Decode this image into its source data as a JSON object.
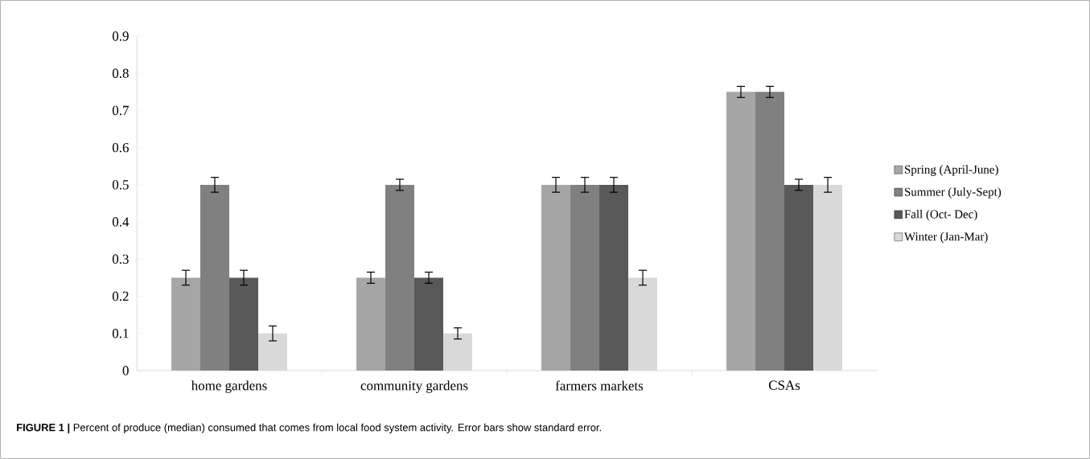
{
  "chart_data": {
    "type": "bar",
    "categories": [
      "home gardens",
      "community gardens",
      "farmers markets",
      "CSAs"
    ],
    "series": [
      {
        "name": "Spring (April-June)",
        "color": "#a6a6a6",
        "values": [
          0.25,
          0.25,
          0.5,
          0.75
        ],
        "errors": [
          0.02,
          0.015,
          0.02,
          0.015
        ]
      },
      {
        "name": "Summer (July-Sept)",
        "color": "#808080",
        "values": [
          0.5,
          0.5,
          0.5,
          0.75
        ],
        "errors": [
          0.02,
          0.015,
          0.02,
          0.015
        ]
      },
      {
        "name": "Fall (Oct- Dec)",
        "color": "#595959",
        "values": [
          0.25,
          0.25,
          0.5,
          0.5
        ],
        "errors": [
          0.02,
          0.015,
          0.02,
          0.015
        ]
      },
      {
        "name": "Winter (Jan-Mar)",
        "color": "#d9d9d9",
        "values": [
          0.1,
          0.1,
          0.25,
          0.5
        ],
        "errors": [
          0.02,
          0.015,
          0.02,
          0.02
        ]
      }
    ],
    "ylim": [
      0,
      0.9
    ],
    "yticks": [
      0,
      0.1,
      0.2,
      0.3,
      0.4,
      0.5,
      0.6,
      0.7,
      0.8,
      0.9
    ],
    "legend": "right",
    "grid": false,
    "annotations": [
      "**FIGURE 1 |** Percent of produce (median) consumed that comes from local food system activity. Error bars show standard error."
    ]
  }
}
